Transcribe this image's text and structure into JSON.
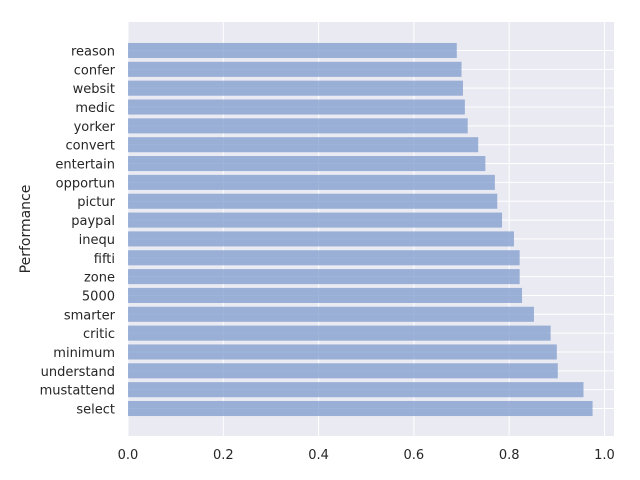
{
  "chart_data": {
    "type": "bar",
    "orientation": "horizontal",
    "title": "",
    "xlabel": "",
    "ylabel": "Performance",
    "xlim": [
      0,
      1.02
    ],
    "xticks": [
      "0.0",
      "0.2",
      "0.4",
      "0.6",
      "0.8",
      "1.0"
    ],
    "xtick_values": [
      0.0,
      0.2,
      0.4,
      0.6,
      0.8,
      1.0
    ],
    "grid": true,
    "legend": "none",
    "colors": {
      "bar": "#7f9bcc",
      "plot_background": "#eaeaf2",
      "grid": "#ffffff",
      "text": "#262626"
    },
    "categories": [
      "reason",
      "confer",
      "websit",
      "medic",
      "yorker",
      "convert",
      "entertain",
      "opportun",
      "pictur",
      "paypal",
      "inequ",
      "fifti",
      "zone",
      "5000",
      "smarter",
      "critic",
      "minimum",
      "understand",
      "mustattend",
      "select"
    ],
    "values": [
      0.69,
      0.7,
      0.703,
      0.707,
      0.713,
      0.735,
      0.75,
      0.77,
      0.775,
      0.785,
      0.81,
      0.822,
      0.822,
      0.827,
      0.852,
      0.887,
      0.9,
      0.902,
      0.956,
      0.975
    ]
  }
}
